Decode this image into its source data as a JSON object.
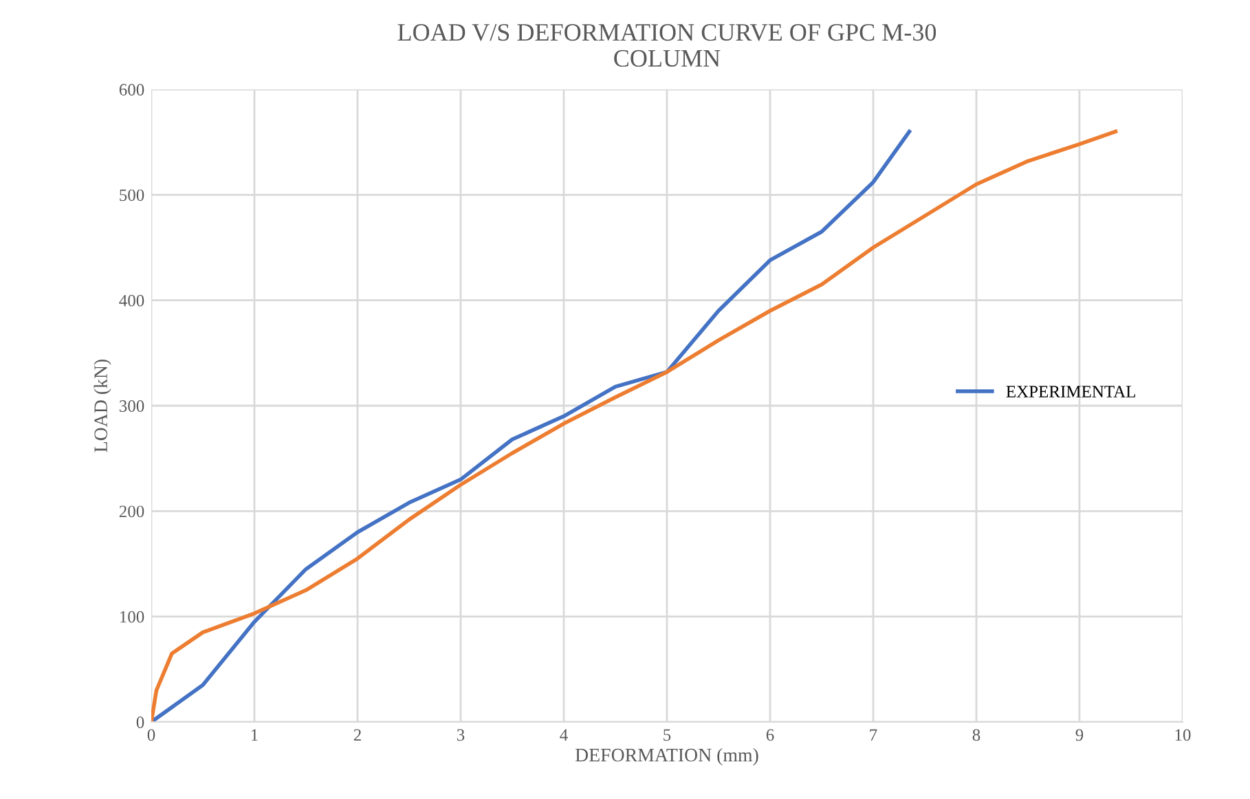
{
  "chart_data": {
    "type": "line",
    "title": "LOAD V/S DEFORMATION CURVE OF GPC M-30\nCOLUMN",
    "xlabel": "DEFORMATION (mm)",
    "ylabel": "LOAD (kN)",
    "xlim": [
      0,
      10
    ],
    "xticks": [
      0,
      1,
      2,
      3,
      4,
      5,
      6,
      7,
      8,
      9,
      10
    ],
    "ylim": [
      0,
      600
    ],
    "yticks": [
      0,
      100,
      200,
      300,
      400,
      500,
      600
    ],
    "grid": true,
    "legend": "right",
    "marker": "none",
    "line_style": "solid",
    "series": [
      {
        "name": "EXPERIMENTAL",
        "color": "#4472c4",
        "x": [
          0,
          0.5,
          1,
          1.5,
          2,
          2.5,
          3,
          3.5,
          4,
          4.5,
          5,
          5.5,
          6,
          6.5,
          7,
          7.35
        ],
        "values": [
          0,
          35,
          95,
          145,
          180,
          208,
          230,
          268,
          290,
          318,
          332,
          390,
          438,
          465,
          512,
          560
        ]
      },
      {
        "color": "#ed7d31",
        "x": [
          0,
          0.05,
          0.2,
          0.5,
          1,
          1.5,
          2,
          2.5,
          3,
          3.5,
          4,
          4.5,
          5,
          5.5,
          6,
          6.5,
          7,
          7.5,
          8,
          8.5,
          9,
          9.35
        ],
        "values": [
          0,
          30,
          65,
          85,
          103,
          125,
          155,
          192,
          225,
          255,
          283,
          308,
          332,
          362,
          390,
          415,
          450,
          480,
          510,
          532,
          548,
          560
        ]
      }
    ]
  }
}
